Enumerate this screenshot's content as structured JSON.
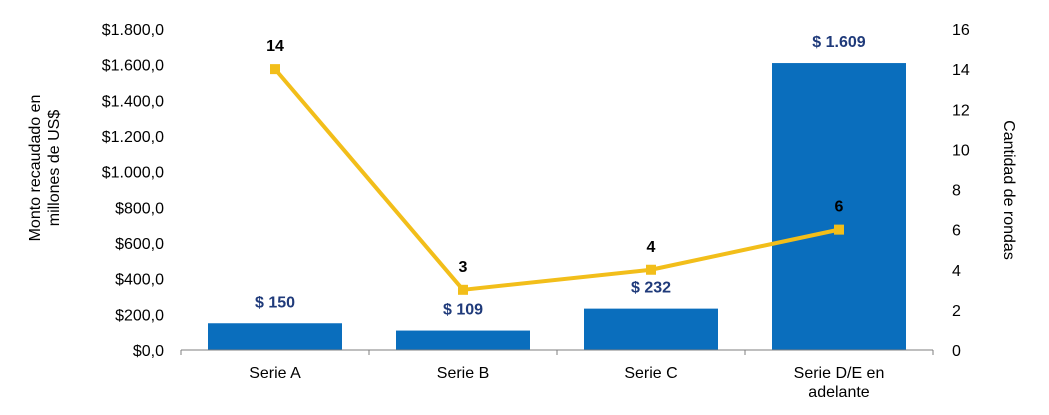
{
  "chart_data": {
    "type": "bar+line",
    "categories": [
      "Serie A",
      "Serie B",
      "Serie C",
      "Serie D/E en adelante"
    ],
    "category_lines": [
      [
        "Serie A"
      ],
      [
        "Serie B"
      ],
      [
        "Serie C"
      ],
      [
        "Serie D/E en",
        "adelante"
      ]
    ],
    "bar_series": {
      "values": [
        150,
        109,
        232,
        1609
      ],
      "labels": [
        "$ 150",
        "$ 109",
        "$ 232",
        "$ 1.609"
      ],
      "color": "#0A6EBD",
      "label_color": "#1F3A7A"
    },
    "line_series": {
      "values": [
        14,
        3,
        4,
        6
      ],
      "labels": [
        "14",
        "3",
        "4",
        "6"
      ],
      "color": "#F2BE1A",
      "label_color": "#000000"
    },
    "y_left": {
      "title_lines": [
        "Monto recaudado en",
        "millones de US$"
      ],
      "min": 0,
      "max": 1800,
      "tick_values": [
        0,
        200,
        400,
        600,
        800,
        1000,
        1200,
        1400,
        1600,
        1800
      ],
      "tick_labels": [
        "$0,0",
        "$200,0",
        "$400,0",
        "$600,0",
        "$800,0",
        "$1.000,0",
        "$1.200,0",
        "$1.400,0",
        "$1.600,0",
        "$1.800,0"
      ]
    },
    "y_right": {
      "title": "Cantidad de rondas",
      "min": 0,
      "max": 16,
      "tick_values": [
        0,
        2,
        4,
        6,
        8,
        10,
        12,
        14,
        16
      ],
      "tick_labels": [
        "0",
        "2",
        "4",
        "6",
        "8",
        "10",
        "12",
        "14",
        "16"
      ]
    },
    "grid": false,
    "legend": "none"
  }
}
